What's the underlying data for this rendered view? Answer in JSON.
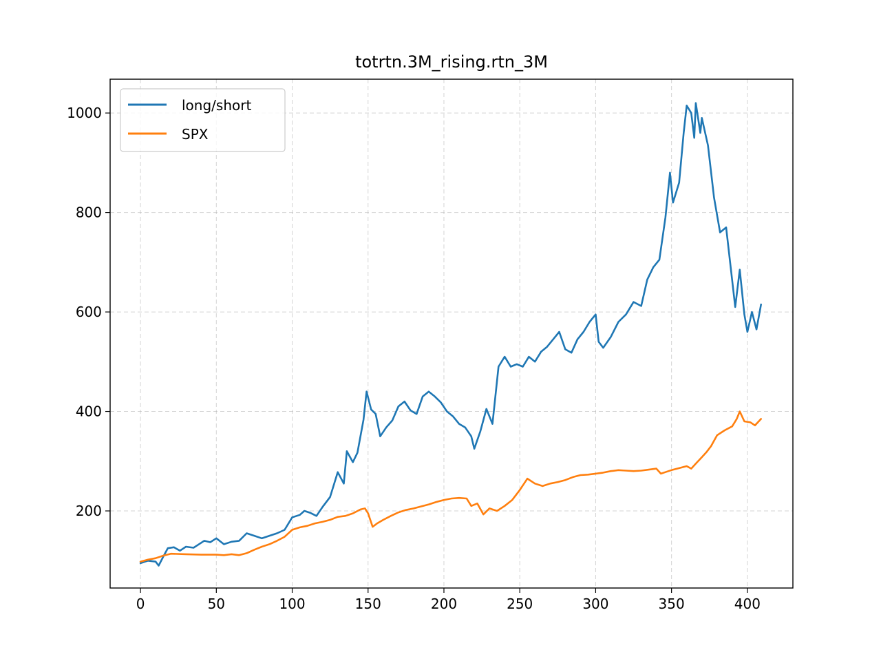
{
  "chart_data": {
    "type": "line",
    "title": "totrtn.3M_rising.rtn_3M",
    "xlabel": "",
    "ylabel": "",
    "xlim": [
      -20,
      430
    ],
    "ylim": [
      45,
      1068
    ],
    "xticks": [
      0,
      50,
      100,
      150,
      200,
      250,
      300,
      350,
      400
    ],
    "yticks": [
      200,
      400,
      600,
      800,
      1000
    ],
    "grid": true,
    "legend_position": "upper-left",
    "series": [
      {
        "name": "long/short",
        "color": "#1f77b4",
        "points": [
          [
            0,
            95
          ],
          [
            5,
            100
          ],
          [
            10,
            98
          ],
          [
            12,
            90
          ],
          [
            15,
            108
          ],
          [
            18,
            125
          ],
          [
            22,
            127
          ],
          [
            26,
            120
          ],
          [
            30,
            128
          ],
          [
            35,
            126
          ],
          [
            38,
            132
          ],
          [
            42,
            140
          ],
          [
            46,
            137
          ],
          [
            50,
            145
          ],
          [
            55,
            133
          ],
          [
            60,
            138
          ],
          [
            65,
            140
          ],
          [
            70,
            155
          ],
          [
            75,
            150
          ],
          [
            80,
            145
          ],
          [
            85,
            150
          ],
          [
            90,
            155
          ],
          [
            95,
            162
          ],
          [
            100,
            187
          ],
          [
            105,
            192
          ],
          [
            108,
            200
          ],
          [
            112,
            196
          ],
          [
            116,
            190
          ],
          [
            120,
            208
          ],
          [
            125,
            228
          ],
          [
            130,
            278
          ],
          [
            134,
            255
          ],
          [
            136,
            320
          ],
          [
            140,
            298
          ],
          [
            143,
            317
          ],
          [
            147,
            383
          ],
          [
            149,
            440
          ],
          [
            152,
            404
          ],
          [
            155,
            395
          ],
          [
            158,
            350
          ],
          [
            162,
            368
          ],
          [
            166,
            382
          ],
          [
            170,
            410
          ],
          [
            174,
            420
          ],
          [
            178,
            402
          ],
          [
            182,
            395
          ],
          [
            186,
            430
          ],
          [
            190,
            440
          ],
          [
            194,
            430
          ],
          [
            198,
            418
          ],
          [
            202,
            400
          ],
          [
            206,
            390
          ],
          [
            210,
            375
          ],
          [
            214,
            368
          ],
          [
            218,
            350
          ],
          [
            220,
            325
          ],
          [
            224,
            360
          ],
          [
            228,
            405
          ],
          [
            232,
            375
          ],
          [
            236,
            490
          ],
          [
            240,
            510
          ],
          [
            244,
            490
          ],
          [
            248,
            495
          ],
          [
            252,
            490
          ],
          [
            256,
            510
          ],
          [
            260,
            500
          ],
          [
            264,
            520
          ],
          [
            268,
            530
          ],
          [
            272,
            545
          ],
          [
            276,
            560
          ],
          [
            280,
            525
          ],
          [
            284,
            518
          ],
          [
            288,
            545
          ],
          [
            292,
            560
          ],
          [
            296,
            580
          ],
          [
            300,
            595
          ],
          [
            302,
            540
          ],
          [
            305,
            528
          ],
          [
            310,
            550
          ],
          [
            315,
            580
          ],
          [
            320,
            595
          ],
          [
            325,
            620
          ],
          [
            330,
            612
          ],
          [
            334,
            665
          ],
          [
            338,
            690
          ],
          [
            342,
            705
          ],
          [
            346,
            790
          ],
          [
            349,
            880
          ],
          [
            351,
            820
          ],
          [
            355,
            860
          ],
          [
            358,
            960
          ],
          [
            360,
            1015
          ],
          [
            363,
            1000
          ],
          [
            365,
            950
          ],
          [
            366,
            1020
          ],
          [
            369,
            960
          ],
          [
            370,
            990
          ],
          [
            374,
            935
          ],
          [
            378,
            830
          ],
          [
            382,
            760
          ],
          [
            386,
            770
          ],
          [
            389,
            690
          ],
          [
            392,
            610
          ],
          [
            395,
            685
          ],
          [
            398,
            595
          ],
          [
            400,
            560
          ],
          [
            403,
            600
          ],
          [
            406,
            565
          ],
          [
            409,
            615
          ]
        ]
      },
      {
        "name": "SPX",
        "color": "#ff7f0e",
        "points": [
          [
            0,
            98
          ],
          [
            5,
            102
          ],
          [
            10,
            105
          ],
          [
            15,
            110
          ],
          [
            20,
            114
          ],
          [
            30,
            113
          ],
          [
            40,
            112
          ],
          [
            50,
            112
          ],
          [
            55,
            111
          ],
          [
            60,
            113
          ],
          [
            65,
            111
          ],
          [
            70,
            115
          ],
          [
            75,
            122
          ],
          [
            80,
            128
          ],
          [
            85,
            133
          ],
          [
            90,
            140
          ],
          [
            95,
            148
          ],
          [
            100,
            162
          ],
          [
            105,
            167
          ],
          [
            110,
            170
          ],
          [
            115,
            175
          ],
          [
            120,
            178
          ],
          [
            125,
            182
          ],
          [
            130,
            188
          ],
          [
            135,
            190
          ],
          [
            140,
            195
          ],
          [
            145,
            203
          ],
          [
            148,
            205
          ],
          [
            150,
            195
          ],
          [
            153,
            168
          ],
          [
            156,
            175
          ],
          [
            160,
            182
          ],
          [
            165,
            190
          ],
          [
            170,
            197
          ],
          [
            175,
            202
          ],
          [
            180,
            205
          ],
          [
            185,
            209
          ],
          [
            190,
            213
          ],
          [
            195,
            218
          ],
          [
            200,
            222
          ],
          [
            205,
            225
          ],
          [
            210,
            226
          ],
          [
            215,
            225
          ],
          [
            218,
            210
          ],
          [
            222,
            215
          ],
          [
            226,
            193
          ],
          [
            230,
            205
          ],
          [
            235,
            200
          ],
          [
            240,
            210
          ],
          [
            245,
            222
          ],
          [
            250,
            242
          ],
          [
            255,
            265
          ],
          [
            260,
            255
          ],
          [
            265,
            250
          ],
          [
            270,
            255
          ],
          [
            275,
            258
          ],
          [
            280,
            262
          ],
          [
            285,
            268
          ],
          [
            290,
            272
          ],
          [
            295,
            273
          ],
          [
            300,
            275
          ],
          [
            305,
            277
          ],
          [
            310,
            280
          ],
          [
            315,
            282
          ],
          [
            320,
            281
          ],
          [
            325,
            280
          ],
          [
            330,
            281
          ],
          [
            335,
            283
          ],
          [
            340,
            285
          ],
          [
            343,
            275
          ],
          [
            346,
            278
          ],
          [
            350,
            282
          ],
          [
            355,
            286
          ],
          [
            360,
            290
          ],
          [
            363,
            285
          ],
          [
            366,
            295
          ],
          [
            370,
            308
          ],
          [
            373,
            318
          ],
          [
            376,
            330
          ],
          [
            380,
            352
          ],
          [
            385,
            362
          ],
          [
            390,
            370
          ],
          [
            393,
            385
          ],
          [
            395,
            400
          ],
          [
            398,
            380
          ],
          [
            402,
            378
          ],
          [
            405,
            372
          ],
          [
            409,
            385
          ]
        ]
      }
    ]
  }
}
